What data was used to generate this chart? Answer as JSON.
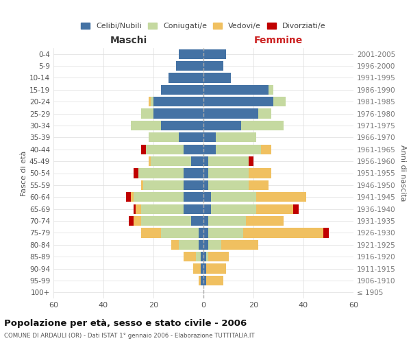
{
  "age_groups": [
    "100+",
    "95-99",
    "90-94",
    "85-89",
    "80-84",
    "75-79",
    "70-74",
    "65-69",
    "60-64",
    "55-59",
    "50-54",
    "45-49",
    "40-44",
    "35-39",
    "30-34",
    "25-29",
    "20-24",
    "15-19",
    "10-14",
    "5-9",
    "0-4"
  ],
  "birth_years": [
    "≤ 1905",
    "1906-1910",
    "1911-1915",
    "1916-1920",
    "1921-1925",
    "1926-1930",
    "1931-1935",
    "1936-1940",
    "1941-1945",
    "1946-1950",
    "1951-1955",
    "1956-1960",
    "1961-1965",
    "1966-1970",
    "1971-1975",
    "1976-1980",
    "1981-1985",
    "1986-1990",
    "1991-1995",
    "1996-2000",
    "2001-2005"
  ],
  "males": {
    "celibi": [
      0,
      1,
      1,
      1,
      2,
      2,
      5,
      8,
      8,
      8,
      8,
      5,
      8,
      10,
      17,
      20,
      20,
      17,
      14,
      11,
      10
    ],
    "coniugati": [
      0,
      0,
      0,
      2,
      8,
      15,
      20,
      17,
      20,
      16,
      18,
      16,
      15,
      12,
      12,
      5,
      1,
      0,
      0,
      0,
      0
    ],
    "vedovi": [
      0,
      1,
      3,
      5,
      3,
      8,
      3,
      2,
      1,
      1,
      0,
      1,
      0,
      0,
      0,
      0,
      1,
      0,
      0,
      0,
      0
    ],
    "divorziati": [
      0,
      0,
      0,
      0,
      0,
      0,
      2,
      1,
      2,
      0,
      2,
      0,
      2,
      0,
      0,
      0,
      0,
      0,
      0,
      0,
      0
    ]
  },
  "females": {
    "nubili": [
      0,
      1,
      1,
      1,
      2,
      2,
      2,
      3,
      3,
      2,
      2,
      2,
      5,
      5,
      15,
      22,
      28,
      26,
      11,
      8,
      9
    ],
    "coniugate": [
      0,
      0,
      0,
      1,
      5,
      14,
      15,
      18,
      18,
      16,
      16,
      16,
      18,
      16,
      17,
      5,
      5,
      2,
      0,
      0,
      0
    ],
    "vedove": [
      0,
      7,
      8,
      8,
      15,
      32,
      15,
      15,
      20,
      8,
      9,
      0,
      4,
      0,
      0,
      0,
      0,
      0,
      0,
      0,
      0
    ],
    "divorziate": [
      0,
      0,
      0,
      0,
      0,
      2,
      0,
      2,
      0,
      0,
      0,
      2,
      0,
      0,
      0,
      0,
      0,
      0,
      0,
      0,
      0
    ]
  },
  "colors": {
    "celibi": "#4472a4",
    "coniugati": "#c5d9a0",
    "vedovi": "#f0c060",
    "divorziati": "#c00000"
  },
  "xlim": 60,
  "title": "Popolazione per età, sesso e stato civile - 2006",
  "subtitle": "COMUNE DI ARDAULI (OR) - Dati ISTAT 1° gennaio 2006 - Elaborazione TUTTITALIA.IT",
  "ylabel_left": "Fasce di età",
  "ylabel_right": "Anni di nascita",
  "xlabel_left": "Maschi",
  "xlabel_right": "Femmine",
  "legend_labels": [
    "Celibi/Nubili",
    "Coniugati/e",
    "Vedovi/e",
    "Divorziati/e"
  ],
  "background_color": "#ffffff",
  "maschi_color": "#333333",
  "femmine_color": "#cc2222"
}
